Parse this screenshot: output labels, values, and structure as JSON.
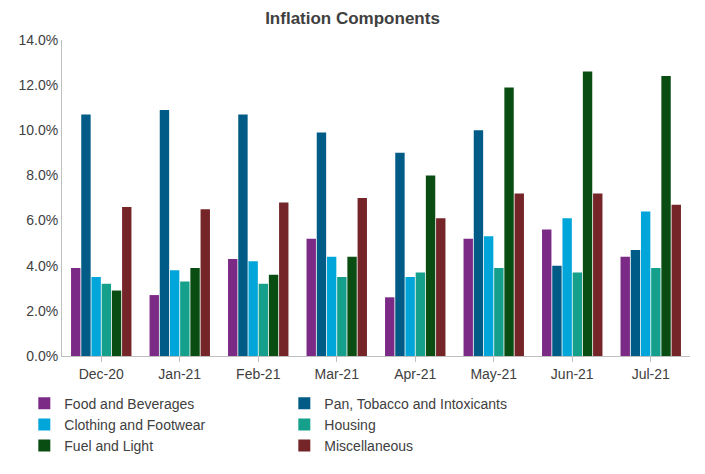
{
  "chart_data": {
    "type": "bar",
    "title": "Inflation Components",
    "categories": [
      "Dec-20",
      "Jan-21",
      "Feb-21",
      "Mar-21",
      "Apr-21",
      "May-21",
      "Jun-21",
      "Jul-21"
    ],
    "series": [
      {
        "name": "Food and Beverages",
        "color": "#7b2a86",
        "values": [
          3.9,
          2.7,
          4.3,
          5.2,
          2.6,
          5.2,
          5.6,
          4.4
        ]
      },
      {
        "name": "Pan, Tobacco and Intoxicants",
        "color": "#005b86",
        "values": [
          10.7,
          10.9,
          10.7,
          9.9,
          9.0,
          10.0,
          4.0,
          4.7
        ]
      },
      {
        "name": "Clothing and Footwear",
        "color": "#00a6d9",
        "values": [
          3.5,
          3.8,
          4.2,
          4.4,
          3.5,
          5.3,
          6.1,
          6.4
        ]
      },
      {
        "name": "Housing",
        "color": "#14a08a",
        "values": [
          3.2,
          3.3,
          3.2,
          3.5,
          3.7,
          3.9,
          3.7,
          3.9
        ]
      },
      {
        "name": "Fuel and Light",
        "color": "#0a4d12",
        "values": [
          2.9,
          3.9,
          3.6,
          4.4,
          8.0,
          11.9,
          12.6,
          12.4
        ]
      },
      {
        "name": "Miscellaneous",
        "color": "#752528",
        "values": [
          6.6,
          6.5,
          6.8,
          7.0,
          6.1,
          7.2,
          7.2,
          6.7
        ]
      }
    ],
    "ylim": [
      0,
      14
    ],
    "yticks": [
      {
        "value": 0,
        "label": "0.0%"
      },
      {
        "value": 2,
        "label": "2.0%"
      },
      {
        "value": 4,
        "label": "4.0%"
      },
      {
        "value": 6,
        "label": "6.0%"
      },
      {
        "value": 8,
        "label": "8.0%"
      },
      {
        "value": 10,
        "label": "10.0%"
      },
      {
        "value": 12,
        "label": "12.0%"
      },
      {
        "value": 14,
        "label": "14.0%"
      }
    ],
    "grid": false,
    "legend": "bottom"
  }
}
